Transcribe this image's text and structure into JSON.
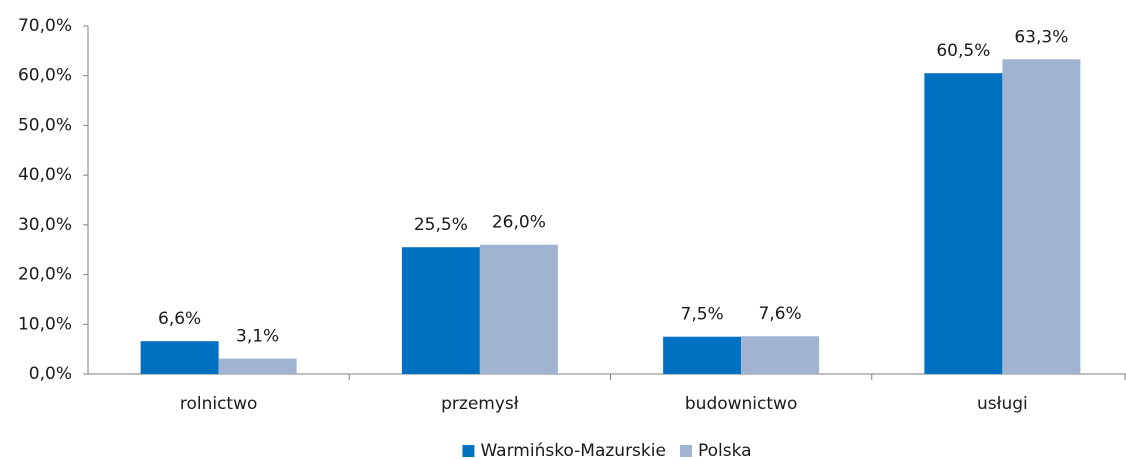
{
  "chart_data": {
    "type": "bar",
    "categories": [
      "rolnictwo",
      "przemysł",
      "budownictwo",
      "usługi"
    ],
    "series": [
      {
        "name": "Warmińsko-Mazurskie",
        "color": "#0070c0",
        "values": [
          6.6,
          25.5,
          7.5,
          60.5
        ],
        "value_labels": [
          "6,6%",
          "25,5%",
          "7,5%",
          "60,5%"
        ]
      },
      {
        "name": "Polska",
        "color": "#a0b4d2",
        "values": [
          3.1,
          26.0,
          7.6,
          63.3
        ],
        "value_labels": [
          "3,1%",
          "26,0%",
          "7,6%",
          "63,3%"
        ]
      }
    ],
    "ylim": [
      0,
      70
    ],
    "yticks": [
      {
        "value": 0,
        "label": "0,0%"
      },
      {
        "value": 10,
        "label": "10,0%"
      },
      {
        "value": 20,
        "label": "20,0%"
      },
      {
        "value": 30,
        "label": "30,0%"
      },
      {
        "value": 40,
        "label": "40,0%"
      },
      {
        "value": 50,
        "label": "50,0%"
      },
      {
        "value": 60,
        "label": "60,0%"
      },
      {
        "value": 70,
        "label": "70,0%"
      }
    ],
    "legend": "bottom"
  }
}
